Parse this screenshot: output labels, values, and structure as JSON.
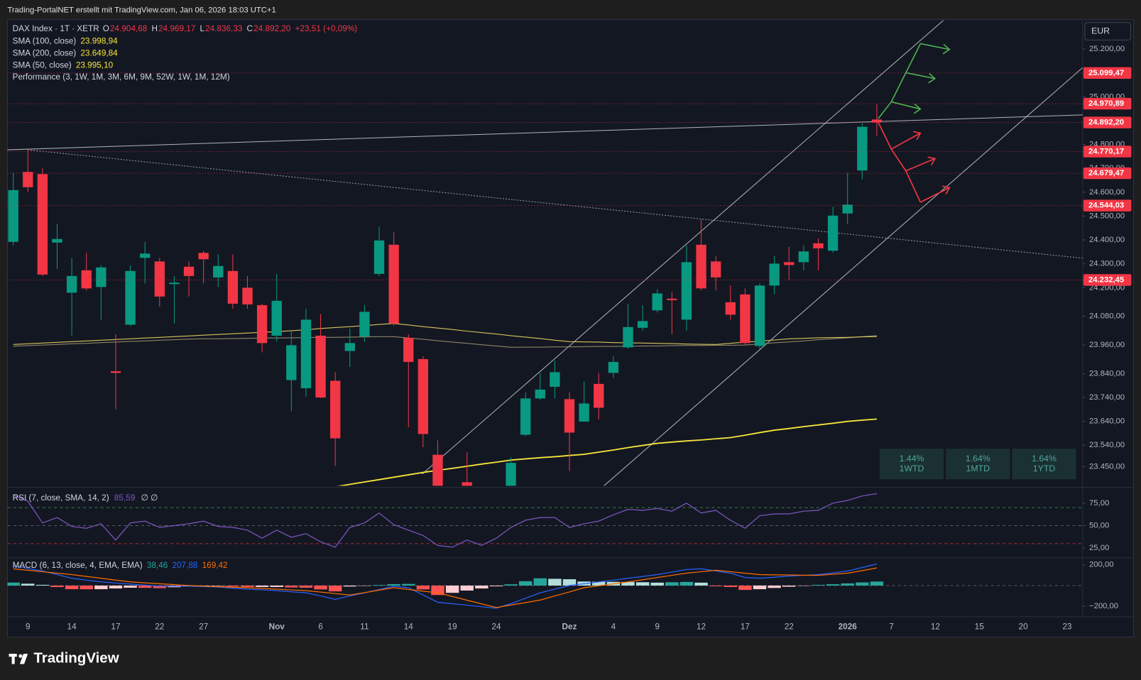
{
  "header": {
    "text": "Trading-PortalNET erstellt mit TradingView.com, Jan 06, 2026 18:03 UTC+1"
  },
  "footer": {
    "brand": "TradingView"
  },
  "chart_data": [
    {
      "type": "candlestick",
      "title": "DAX Index · 1T · XETR",
      "legend_items": [
        {
          "label": "O",
          "value": "24.904,68"
        },
        {
          "label": "H",
          "value": "24.969,17"
        },
        {
          "label": "L",
          "value": "24.836,33"
        },
        {
          "label": "C",
          "value": "24.892,20"
        }
      ],
      "change": "+23,51 (+0,09%)",
      "indicator_label": "Performance (3, 1W, 1M, 3M, 6M, 9M, 52W, 1W, 1M, 12M)",
      "currency": "EUR",
      "categories": [
        null,
        "9",
        null,
        null,
        "14",
        null,
        null,
        "17",
        null,
        null,
        "22",
        null,
        null,
        "27",
        null,
        null,
        null,
        null,
        "Nov",
        null,
        null,
        "6",
        null,
        null,
        "11",
        null,
        null,
        "14",
        null,
        null,
        "19",
        null,
        null,
        "24",
        null,
        null,
        null,
        null,
        "Dez",
        null,
        null,
        "4",
        null,
        null,
        "9",
        null,
        null,
        "12",
        null,
        null,
        "17",
        null,
        null,
        "22",
        null,
        null,
        null,
        "2026",
        null,
        null,
        "7",
        null,
        null,
        "12",
        null,
        null,
        "15",
        null,
        null,
        "20",
        null,
        null,
        "23"
      ],
      "open": [
        24392,
        24685,
        24676,
        24389,
        24179,
        24273,
        24203,
        23850,
        24045,
        24325,
        24310,
        24215,
        24288,
        24346,
        24243,
        24270,
        24200,
        24127,
        23999,
        23813,
        23779,
        23999,
        23810,
        23935,
        23996,
        24258,
        24380,
        23990,
        23901,
        23500,
        23200,
        23385,
        23100,
        23100,
        23200,
        23584,
        23736,
        23785,
        23733,
        23639,
        23797,
        23843,
        23950,
        24032,
        24105,
        24154,
        24066,
        24380,
        24310,
        24139,
        24172,
        23956,
        24209,
        24307,
        24307,
        24386,
        24355,
        24511,
        24691,
        24904.68,
        null,
        null,
        null,
        null,
        null,
        null,
        null,
        null,
        null,
        null,
        null,
        null,
        null
      ],
      "high": [
        24682,
        24782,
        24700,
        24468,
        24325,
        24346,
        24294,
        24005,
        24294,
        24392,
        24325,
        24249,
        24310,
        24355,
        24340,
        24340,
        24249,
        24133,
        24258,
        24020,
        24112,
        24090,
        23846,
        24029,
        24127,
        24456,
        24432,
        24005,
        23913,
        23560,
        23300,
        23510,
        23300,
        23300,
        23490,
        23761,
        23843,
        23895,
        23761,
        23807,
        23843,
        23913,
        24133,
        24127,
        24194,
        24182,
        24377,
        24487,
        24334,
        24209,
        24197,
        24218,
        24334,
        24371,
        24377,
        24407,
        24539,
        24682,
        24889,
        24969.17,
        null,
        null,
        null,
        null,
        null,
        null,
        null,
        null,
        null,
        null,
        null,
        null,
        null
      ],
      "low": [
        24377,
        24600,
        24249,
        24279,
        23999,
        24188,
        24066,
        23691,
        24039,
        24218,
        24121,
        24050,
        24163,
        24218,
        24203,
        24112,
        24112,
        23929,
        23974,
        23682,
        23743,
        23737,
        23453,
        23868,
        23974,
        24249,
        24041,
        23615,
        23532,
        23100,
        23050,
        23100,
        22950,
        23050,
        23100,
        23578,
        23730,
        23736,
        23432,
        23639,
        23648,
        23822,
        23944,
        24020,
        24096,
        24005,
        24020,
        24188,
        24188,
        24066,
        23959,
        23944,
        24173,
        24234,
        24273,
        24273,
        24346,
        24468,
        24654,
        24836.33,
        null,
        null,
        null,
        null,
        null,
        null,
        null,
        null,
        null,
        null,
        null,
        null,
        null
      ],
      "close": [
        24609,
        24621,
        24255,
        24404,
        24249,
        24197,
        24285,
        23843,
        24270,
        24343,
        24163,
        24221,
        24249,
        24319,
        24291,
        24133,
        24130,
        23968,
        24145,
        23959,
        24066,
        23740,
        23569,
        23968,
        24099,
        24398,
        24050,
        23889,
        23587,
        23180,
        23160,
        23300,
        23090,
        23240,
        23466,
        23736,
        23773,
        23846,
        23593,
        23715,
        23697,
        23889,
        24035,
        24060,
        24176,
        24148,
        24307,
        24197,
        24243,
        24087,
        23968,
        24209,
        24301,
        24295,
        24352,
        24365,
        24502,
        24548,
        24874,
        24892.2,
        null,
        null,
        null,
        null,
        null,
        null,
        null,
        null,
        null,
        null,
        null,
        null,
        null
      ],
      "up_color": "#089981",
      "down_color": "#f23645",
      "overlays": [
        {
          "name": "SMA (100, close)",
          "value_label": "23.998,94",
          "color": "#8c8466",
          "values": [
            23955,
            23957,
            23960,
            23962,
            23965,
            23967,
            23970,
            23972,
            23975,
            23977,
            23980,
            23982,
            23985,
            23986,
            23986,
            23987,
            23988,
            23989,
            23989,
            23990,
            23991,
            23992,
            23992,
            23993,
            23994,
            23995,
            23995,
            23989,
            23984,
            23978,
            23972,
            23967,
            23961,
            23956,
            23950,
            23951,
            23951,
            23952,
            23952,
            23953,
            23954,
            23954,
            23955,
            23956,
            23956,
            23957,
            23958,
            23958,
            23959,
            23959,
            23960,
            23964,
            23969,
            23973,
            23977,
            23982,
            23986,
            23990,
            23995,
            23998.94,
            null,
            null,
            null,
            null,
            null,
            null,
            null,
            null,
            null,
            null,
            null,
            null,
            null
          ]
        },
        {
          "name": "SMA (200, close)",
          "value_label": "23.649,84",
          "color": "#f5e53b",
          "values": [
            23250,
            23255,
            23261,
            23266,
            23271,
            23276,
            23282,
            23287,
            23292,
            23298,
            23303,
            23308,
            23313,
            23319,
            23324,
            23329,
            23334,
            23340,
            23345,
            23350,
            23355,
            23361,
            23366,
            23376,
            23386,
            23396,
            23406,
            23416,
            23426,
            23435,
            23443,
            23452,
            23461,
            23469,
            23478,
            23483,
            23488,
            23492,
            23497,
            23502,
            23511,
            23520,
            23530,
            23539,
            23548,
            23553,
            23558,
            23562,
            23567,
            23572,
            23582,
            23593,
            23603,
            23610,
            23618,
            23625,
            23632,
            23640,
            23645,
            23649.84,
            null,
            null,
            null,
            null,
            null,
            null,
            null,
            null,
            null,
            null,
            null,
            null,
            null
          ]
        },
        {
          "name": "SMA (50, close)",
          "value_label": "23.995,10",
          "color": "#d8c35a",
          "values": [
            23962,
            23965,
            23968,
            23971,
            23974,
            23977,
            23980,
            23983,
            23986,
            23989,
            23992,
            23995,
            23998,
            24001,
            24004,
            24007,
            24010,
            24013,
            24016,
            24020,
            24024,
            24029,
            24033,
            24037,
            24041,
            24046,
            24050,
            24044,
            24037,
            24031,
            24025,
            24018,
            24012,
            24006,
            23999,
            23993,
            23987,
            23980,
            23974,
            23973,
            23972,
            23970,
            23969,
            23968,
            23967,
            23966,
            23964,
            23963,
            23962,
            23967,
            23972,
            23976,
            23981,
            23986,
            23988,
            23990,
            23991,
            23992,
            23994,
            23995.1,
            null,
            null,
            null,
            null,
            null,
            null,
            null,
            null,
            null,
            null,
            null,
            null,
            null
          ]
        }
      ],
      "ylim": [
        23370,
        25320
      ],
      "yticks": [
        {
          "value": 25200,
          "label": "25.200,00"
        },
        {
          "value": 25000,
          "label": "25.000,00"
        },
        {
          "value": 24800,
          "label": "24.800,00"
        },
        {
          "value": 24700,
          "label": "24.700,00"
        },
        {
          "value": 24600,
          "label": "24.600,00"
        },
        {
          "value": 24500,
          "label": "24.500,00"
        },
        {
          "value": 24400,
          "label": "24.400,00"
        },
        {
          "value": 24300,
          "label": "24.300,00"
        },
        {
          "value": 24200,
          "label": "24.200,00"
        },
        {
          "value": 24080,
          "label": "24.080,00"
        },
        {
          "value": 23960,
          "label": "23.960,00"
        },
        {
          "value": 23840,
          "label": "23.840,00"
        },
        {
          "value": 23740,
          "label": "23.740,00"
        },
        {
          "value": 23640,
          "label": "23.640,00"
        },
        {
          "value": 23540,
          "label": "23.540,00"
        },
        {
          "value": 23450,
          "label": "23.450,00"
        }
      ],
      "levels": [
        {
          "value": 25099.47,
          "label": "25.099,47"
        },
        {
          "value": 24970.89,
          "label": "24.970,89"
        },
        {
          "value": 24892.2,
          "label": "24.892,20"
        },
        {
          "value": 24770.17,
          "label": "24.770,17"
        },
        {
          "value": 24679.47,
          "label": "24.679,47"
        },
        {
          "value": 24544.03,
          "label": "24.544,03"
        },
        {
          "value": 24232.45,
          "label": "24.232,45"
        }
      ],
      "level_color": "#f23645",
      "performance": [
        {
          "value": "1.44%",
          "label": "1WTD"
        },
        {
          "value": "1.64%",
          "label": "1MTD"
        },
        {
          "value": "1.64%",
          "label": "1YTD"
        }
      ]
    },
    {
      "type": "line",
      "title": "RSI (7, close, SMA, 14, 2)",
      "value_label": "85,59",
      "extra": "∅ ∅",
      "color": "#7e57c2",
      "values": [
        84,
        77,
        53,
        59,
        49,
        47,
        52,
        34,
        53,
        55,
        48,
        50,
        52,
        55,
        49,
        48,
        45,
        36,
        45,
        37,
        41,
        32,
        26,
        48,
        53,
        64,
        51,
        45,
        39,
        28,
        26,
        34,
        28,
        36,
        48,
        56,
        59,
        59,
        48,
        52,
        55,
        62,
        68,
        67,
        69,
        66,
        75,
        64,
        67,
        56,
        47,
        61,
        63,
        63,
        66,
        67,
        75,
        78,
        83,
        85.59,
        null,
        null,
        null,
        null,
        null,
        null,
        null,
        null,
        null,
        null,
        null,
        null,
        null
      ],
      "ylim": [
        15,
        91
      ],
      "yticks": [
        {
          "value": 75,
          "label": "75,00"
        },
        {
          "value": 50,
          "label": "50,00"
        },
        {
          "value": 25,
          "label": "25,00"
        }
      ],
      "levels": [
        70,
        50,
        30
      ],
      "level_colors": [
        "#4caf50",
        "#787b86",
        "#f23645"
      ]
    },
    {
      "type": "macd",
      "title": "MACD (6, 13, close, 4, EMA, EMA)",
      "histogram": {
        "value_label": "38,46",
        "colors": [
          "#26a69a",
          "#b2dfdb",
          "#ffcdd2",
          "#ff5252"
        ],
        "values": [
          29,
          18,
          7,
          -14,
          -35,
          -36,
          -35,
          -28,
          -21,
          -22,
          -25,
          -16,
          -7,
          -5,
          -3,
          -9,
          -14,
          -14,
          -14,
          -18,
          -21,
          -37,
          -56,
          -9,
          -2,
          6,
          14,
          16,
          -37,
          -91,
          -70,
          -48,
          -28,
          -7,
          12,
          42,
          70,
          65,
          61,
          39,
          37,
          36,
          35,
          32,
          28,
          32,
          35,
          28,
          -7,
          -14,
          -42,
          -35,
          -23,
          -11,
          -2,
          7,
          13,
          21,
          30,
          38.46,
          null,
          null,
          null,
          null,
          null,
          null,
          null,
          null,
          null,
          null,
          null,
          null,
          null
        ]
      },
      "macd": {
        "value_label": "207,88",
        "color": "#2962ff",
        "values": [
          190,
          165,
          140,
          105,
          70,
          52,
          35,
          25,
          14,
          4,
          -7,
          -7,
          -7,
          -10,
          -14,
          -25,
          -35,
          -42,
          -49,
          -60,
          -70,
          -100,
          -133,
          -100,
          -70,
          -38,
          -7,
          -21,
          -91,
          -161,
          -175,
          -189,
          -204,
          -218,
          -175,
          -122,
          -70,
          -35,
          0,
          18,
          35,
          52,
          70,
          88,
          105,
          130,
          154,
          161,
          140,
          119,
          77,
          70,
          80,
          91,
          98,
          105,
          122,
          140,
          174,
          207.88,
          null,
          null,
          null,
          null,
          null,
          null,
          null,
          null,
          null,
          null,
          null,
          null,
          null
        ]
      },
      "signal": {
        "value_label": "169,42",
        "color": "#ff6d00",
        "values": [
          161,
          147,
          133,
          119,
          105,
          88,
          70,
          53,
          35,
          26,
          18,
          9,
          0,
          -5,
          -11,
          -16,
          -21,
          -28,
          -35,
          -42,
          -49,
          -63,
          -77,
          -91,
          -68,
          -44,
          -21,
          -37,
          -54,
          -70,
          -105,
          -141,
          -176,
          -211,
          -187,
          -164,
          -140,
          -100,
          -61,
          -21,
          -2,
          16,
          35,
          56,
          77,
          98,
          119,
          133,
          147,
          133,
          119,
          105,
          103,
          102,
          100,
          98,
          109,
          119,
          144,
          169.42,
          null,
          null,
          null,
          null,
          null,
          null,
          null,
          null,
          null,
          null,
          null,
          null,
          null
        ]
      },
      "ylim": [
        -300,
        260
      ],
      "yticks": [
        {
          "value": 200,
          "label": "200,00"
        },
        {
          "value": -200,
          "label": "−200,00"
        }
      ]
    }
  ]
}
